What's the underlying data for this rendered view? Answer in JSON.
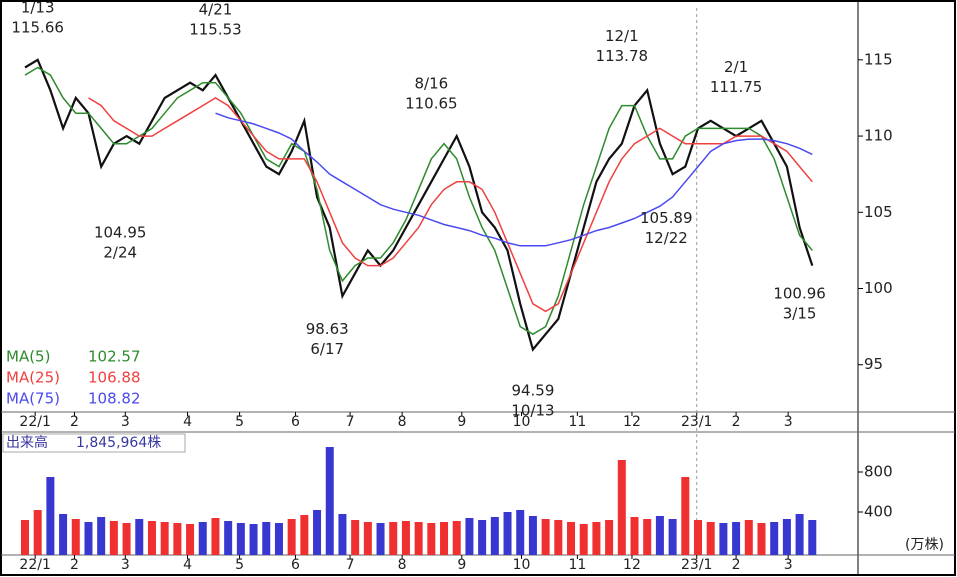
{
  "chart_data": {
    "type": "line",
    "x": [
      0,
      1,
      2,
      3,
      4,
      5,
      6,
      7,
      8,
      9,
      10,
      11,
      12,
      13,
      14,
      15,
      16,
      17,
      18,
      19,
      20,
      21,
      22,
      23,
      24,
      25,
      26,
      27,
      28,
      29,
      30,
      31,
      32,
      33,
      34,
      35,
      36,
      37,
      38,
      39,
      40,
      41,
      42,
      43,
      44,
      45,
      46,
      47,
      48,
      49,
      50,
      51,
      52,
      53,
      54,
      55,
      56,
      57,
      58,
      59,
      60,
      61,
      62
    ],
    "xlim": [
      -0.55,
      65.6
    ],
    "xticks": [
      {
        "value": 0.8,
        "label": "22/1"
      },
      {
        "value": 3.9,
        "label": "2"
      },
      {
        "value": 7.9,
        "label": "3"
      },
      {
        "value": 12.8,
        "label": "4"
      },
      {
        "value": 16.9,
        "label": "5"
      },
      {
        "value": 21.3,
        "label": "6"
      },
      {
        "value": 25.6,
        "label": "7"
      },
      {
        "value": 29.7,
        "label": "8"
      },
      {
        "value": 34.4,
        "label": "9"
      },
      {
        "value": 39.1,
        "label": "10"
      },
      {
        "value": 43.5,
        "label": "11"
      },
      {
        "value": 47.8,
        "label": "12"
      },
      {
        "value": 52.9,
        "label": "23/1"
      },
      {
        "value": 56,
        "label": "2"
      },
      {
        "value": 60.1,
        "label": "3"
      }
    ],
    "year_divider": 52.9,
    "ylim": [
      91.9,
      118.4
    ],
    "yticks": [
      95,
      100,
      105,
      110,
      115
    ],
    "price": {
      "color": "#111111",
      "values": [
        114.5,
        115,
        113,
        110.5,
        112.5,
        111.5,
        108,
        109.5,
        110,
        109.5,
        111,
        112.5,
        113,
        113.5,
        113,
        114,
        112.5,
        111,
        109.5,
        108,
        107.5,
        109,
        111,
        106,
        104,
        99.5,
        101,
        102.5,
        101.5,
        102.5,
        104,
        105.5,
        107,
        108.5,
        110,
        108,
        105,
        104,
        102.5,
        99,
        96,
        97,
        98,
        101,
        104,
        107,
        108.5,
        109.5,
        112,
        113,
        109.5,
        107.5,
        108,
        110.5,
        111,
        110.5,
        110,
        110.5,
        111,
        109.5,
        108,
        104,
        101.5
      ]
    },
    "series": [
      {
        "name": "MA(5)",
        "last": 102.57,
        "color": "#2e8b2e",
        "values": [
          114,
          114.5,
          114,
          112.5,
          111.5,
          111.5,
          110.5,
          109.5,
          109.5,
          110,
          110.5,
          111.5,
          112.5,
          113,
          113.5,
          113.5,
          112.5,
          111.5,
          110,
          108.5,
          108,
          109.5,
          109,
          106.5,
          102.5,
          100.5,
          101.5,
          102,
          102,
          103,
          104.5,
          106.5,
          108.5,
          109.5,
          108.5,
          106,
          104,
          102.5,
          100,
          97.5,
          97,
          97.5,
          99.5,
          102.5,
          105.5,
          108,
          110.5,
          112,
          112,
          110,
          108.5,
          108.5,
          110,
          110.5,
          110.5,
          110.5,
          110.5,
          110.5,
          110,
          108.5,
          106,
          103.5,
          102.5
        ]
      },
      {
        "name": "MA(25)",
        "last": 106.88,
        "color": "#f04040",
        "values": [
          null,
          null,
          null,
          null,
          null,
          112.5,
          112,
          111,
          110.5,
          110,
          110,
          110.5,
          111,
          111.5,
          112,
          112.5,
          112,
          111,
          110,
          109,
          108.5,
          108.5,
          108.5,
          107,
          105,
          103,
          102,
          101.5,
          101.5,
          102,
          103,
          104,
          105.5,
          106.5,
          107,
          107,
          106.5,
          105,
          103,
          101,
          99,
          98.5,
          99,
          101,
          103,
          105,
          107,
          108.5,
          109.5,
          110,
          110.5,
          110,
          109.5,
          109.5,
          109.5,
          109.5,
          110,
          110,
          110,
          109.5,
          109,
          108,
          107
        ]
      },
      {
        "name": "MA(75)",
        "last": 108.82,
        "color": "#4a4af0",
        "values": [
          null,
          null,
          null,
          null,
          null,
          null,
          null,
          null,
          null,
          null,
          null,
          null,
          null,
          null,
          null,
          111.5,
          111.2,
          111,
          110.8,
          110.5,
          110.2,
          109.8,
          109,
          108.3,
          107.5,
          107,
          106.5,
          106,
          105.5,
          105.2,
          105,
          104.8,
          104.5,
          104.2,
          104,
          103.8,
          103.5,
          103.3,
          103,
          102.8,
          102.8,
          102.8,
          103,
          103.2,
          103.5,
          103.8,
          104,
          104.3,
          104.6,
          105,
          105.4,
          106,
          107,
          108,
          109,
          109.5,
          109.7,
          109.8,
          109.8,
          109.7,
          109.5,
          109.2,
          108.8
        ]
      }
    ],
    "annotations": [
      {
        "x": 1,
        "value": 115.66,
        "date": "1/13",
        "position": "above"
      },
      {
        "x": 15,
        "value": 115.53,
        "date": "4/21",
        "position": "above"
      },
      {
        "x": 32,
        "value": 110.65,
        "date": "8/16",
        "position": "above"
      },
      {
        "x": 47,
        "value": 113.78,
        "date": "12/1",
        "position": "above"
      },
      {
        "x": 56,
        "value": 111.75,
        "date": "2/1",
        "position": "above"
      },
      {
        "x": 7.5,
        "value": 104.95,
        "date": "2/24",
        "position": "below"
      },
      {
        "x": 23.8,
        "value": 98.63,
        "date": "6/17",
        "position": "below"
      },
      {
        "x": 40,
        "value": 94.59,
        "date": "10/13",
        "position": "below"
      },
      {
        "x": 50.5,
        "value": 105.89,
        "date": "12/22",
        "position": "below"
      },
      {
        "x": 61,
        "value": 100.96,
        "date": "3/15",
        "position": "below"
      }
    ],
    "volume": {
      "label": "出来高",
      "total": {
        "value": 1845964,
        "label": "1,845,964株"
      },
      "unit": "(万株)",
      "up_color": "#f03030",
      "down_color": "#3838d0",
      "ylim": [
        0,
        1200
      ],
      "yticks": [
        400,
        800
      ],
      "values": [
        320,
        420,
        750,
        380,
        330,
        300,
        350,
        310,
        290,
        330,
        310,
        300,
        290,
        280,
        300,
        340,
        310,
        290,
        280,
        300,
        290,
        330,
        370,
        420,
        1050,
        380,
        320,
        300,
        290,
        300,
        310,
        300,
        290,
        300,
        310,
        340,
        320,
        350,
        400,
        420,
        360,
        330,
        320,
        300,
        280,
        300,
        320,
        920,
        350,
        330,
        360,
        330,
        750,
        320,
        300,
        290,
        300,
        320,
        290,
        300,
        330,
        380,
        320
      ]
    }
  }
}
